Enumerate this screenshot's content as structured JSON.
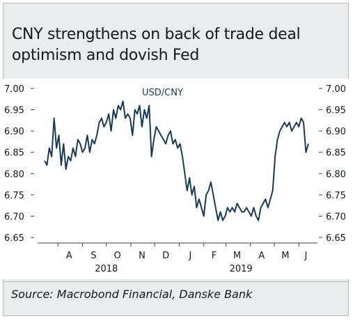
{
  "title": {
    "line1": "CNY strengthens on back of trade deal",
    "line2": "optimism and dovish Fed"
  },
  "source": "Source: Macrobond Financial, Danske Bank",
  "colors": {
    "series": "#173a5b",
    "panel_bg": "#eaebed",
    "text": "#101820"
  },
  "chart_data": {
    "type": "line",
    "title": "",
    "xlabel": "",
    "ylabel": "",
    "ylim": [
      6.65,
      7.0
    ],
    "yticks": [
      "7.00",
      "6.95",
      "6.90",
      "6.85",
      "6.80",
      "6.75",
      "6.70",
      "6.65"
    ],
    "ytick_values": [
      7.0,
      6.95,
      6.9,
      6.85,
      6.8,
      6.75,
      6.7,
      6.65
    ],
    "xlim": [
      "2018-07-15",
      "2019-06-14"
    ],
    "month_labels": [
      {
        "label": "A",
        "date": "2018-08-15"
      },
      {
        "label": "S",
        "date": "2018-09-15"
      },
      {
        "label": "O",
        "date": "2018-10-15"
      },
      {
        "label": "N",
        "date": "2018-11-15"
      },
      {
        "label": "D",
        "date": "2018-12-15"
      },
      {
        "label": "J",
        "date": "2019-01-15"
      },
      {
        "label": "F",
        "date": "2019-02-14"
      },
      {
        "label": "M",
        "date": "2019-03-15"
      },
      {
        "label": "A",
        "date": "2019-04-15"
      },
      {
        "label": "M",
        "date": "2019-05-15"
      },
      {
        "label": "J",
        "date": "2019-06-10"
      }
    ],
    "year_labels": [
      {
        "label": "2018",
        "date": "2018-10-01"
      },
      {
        "label": "2019",
        "date": "2019-03-20"
      }
    ],
    "legend": [
      "USD/CNY"
    ],
    "grid": false,
    "series": [
      {
        "name": "USD/CNY",
        "x": [
          "2018-07-15",
          "2018-07-18",
          "2018-07-21",
          "2018-07-24",
          "2018-07-27",
          "2018-07-30",
          "2018-08-02",
          "2018-08-05",
          "2018-08-08",
          "2018-08-11",
          "2018-08-14",
          "2018-08-17",
          "2018-08-20",
          "2018-08-23",
          "2018-08-26",
          "2018-08-29",
          "2018-09-01",
          "2018-09-04",
          "2018-09-07",
          "2018-09-10",
          "2018-09-13",
          "2018-09-16",
          "2018-09-19",
          "2018-09-22",
          "2018-09-25",
          "2018-09-28",
          "2018-10-01",
          "2018-10-04",
          "2018-10-07",
          "2018-10-10",
          "2018-10-13",
          "2018-10-16",
          "2018-10-19",
          "2018-10-22",
          "2018-10-25",
          "2018-10-28",
          "2018-10-31",
          "2018-11-03",
          "2018-11-06",
          "2018-11-09",
          "2018-11-12",
          "2018-11-15",
          "2018-11-18",
          "2018-11-21",
          "2018-11-24",
          "2018-11-27",
          "2018-11-30",
          "2018-12-03",
          "2018-12-06",
          "2018-12-09",
          "2018-12-12",
          "2018-12-15",
          "2018-12-18",
          "2018-12-21",
          "2018-12-24",
          "2018-12-27",
          "2018-12-30",
          "2019-01-02",
          "2019-01-05",
          "2019-01-08",
          "2019-01-11",
          "2019-01-14",
          "2019-01-17",
          "2019-01-20",
          "2019-01-23",
          "2019-01-26",
          "2019-01-29",
          "2019-02-01",
          "2019-02-04",
          "2019-02-07",
          "2019-02-10",
          "2019-02-13",
          "2019-02-16",
          "2019-02-19",
          "2019-02-22",
          "2019-02-25",
          "2019-02-28",
          "2019-03-03",
          "2019-03-06",
          "2019-03-09",
          "2019-03-12",
          "2019-03-15",
          "2019-03-18",
          "2019-03-21",
          "2019-03-24",
          "2019-03-27",
          "2019-03-30",
          "2019-04-02",
          "2019-04-05",
          "2019-04-08",
          "2019-04-11",
          "2019-04-14",
          "2019-04-17",
          "2019-04-20",
          "2019-04-23",
          "2019-04-26",
          "2019-04-29",
          "2019-05-02",
          "2019-05-05",
          "2019-05-08",
          "2019-05-11",
          "2019-05-14",
          "2019-05-17",
          "2019-05-20",
          "2019-05-23",
          "2019-05-26",
          "2019-05-29",
          "2019-06-01",
          "2019-06-04",
          "2019-06-07",
          "2019-06-10",
          "2019-06-13"
        ],
        "values": [
          6.83,
          6.82,
          6.86,
          6.84,
          6.93,
          6.86,
          6.89,
          6.82,
          6.87,
          6.81,
          6.84,
          6.83,
          6.86,
          6.84,
          6.88,
          6.87,
          6.85,
          6.86,
          6.89,
          6.85,
          6.88,
          6.87,
          6.89,
          6.92,
          6.93,
          6.91,
          6.92,
          6.94,
          6.9,
          6.95,
          6.93,
          6.96,
          6.95,
          6.97,
          6.93,
          6.94,
          6.93,
          6.89,
          6.95,
          6.94,
          6.96,
          6.91,
          6.95,
          6.93,
          6.96,
          6.84,
          6.88,
          6.91,
          6.9,
          6.89,
          6.88,
          6.87,
          6.89,
          6.9,
          6.87,
          6.88,
          6.86,
          6.87,
          6.84,
          6.8,
          6.76,
          6.79,
          6.75,
          6.77,
          6.72,
          6.74,
          6.72,
          6.7,
          6.75,
          6.76,
          6.78,
          6.75,
          6.72,
          6.69,
          6.71,
          6.69,
          6.7,
          6.72,
          6.71,
          6.72,
          6.71,
          6.73,
          6.72,
          6.71,
          6.71,
          6.72,
          6.71,
          6.7,
          6.72,
          6.7,
          6.69,
          6.72,
          6.73,
          6.74,
          6.72,
          6.74,
          6.76,
          6.84,
          6.88,
          6.9,
          6.91,
          6.92,
          6.91,
          6.92,
          6.9,
          6.91,
          6.92,
          6.91,
          6.93,
          6.92,
          6.85,
          6.87
        ]
      }
    ]
  }
}
